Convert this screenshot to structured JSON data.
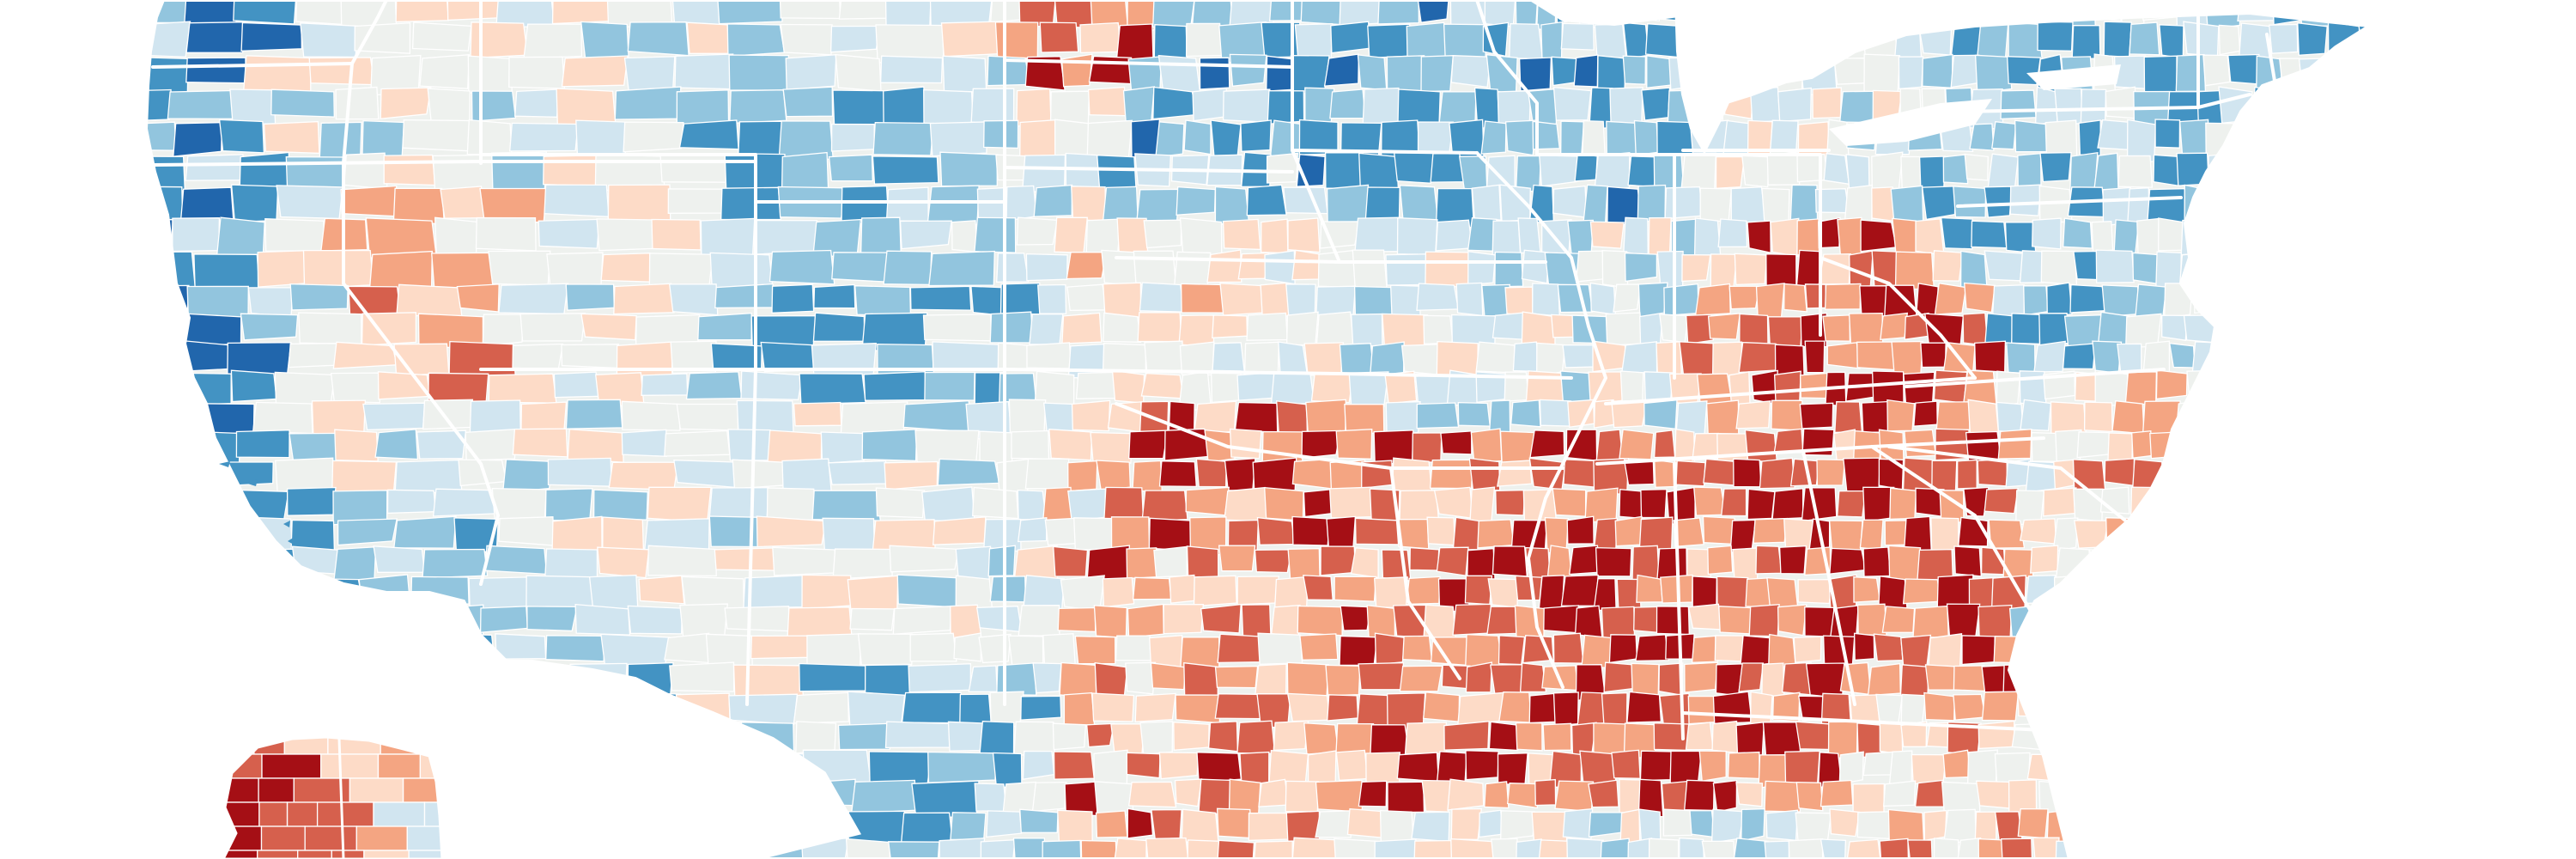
{
  "map": {
    "palette": {
      "strong_red": "#a50f15",
      "red": "#d6604d",
      "light_red": "#f4a582",
      "pale_red": "#fddbc7",
      "neutral": "#eef1ee",
      "pale_blue": "#d1e5f0",
      "light_blue": "#92c5de",
      "blue": "#4393c3",
      "strong_blue": "#2166ac",
      "county_border": "#ffffff",
      "state_border": "#ffffff",
      "background": "#ffffff"
    }
  }
}
